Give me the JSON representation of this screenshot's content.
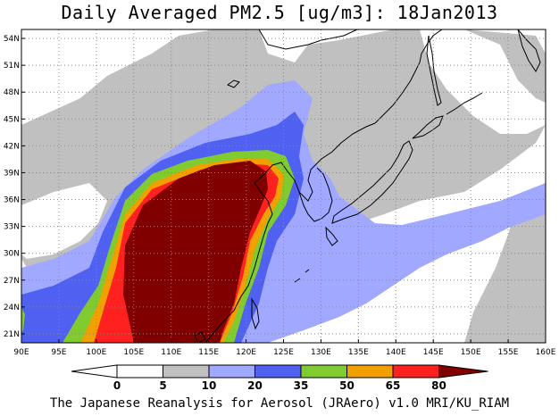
{
  "title": "Daily Averaged PM2.5 [ug/m3]: 18Jan2013",
  "footer": "The Japanese Reanalysis for Aerosol (JRAero) v1.0 MRI/KU_RIAM",
  "map": {
    "lon_ticks": [
      "90E",
      "95E",
      "100E",
      "105E",
      "110E",
      "115E",
      "120E",
      "125E",
      "130E",
      "135E",
      "140E",
      "145E",
      "150E",
      "155E",
      "160E"
    ],
    "lat_ticks": [
      "21N",
      "24N",
      "27N",
      "30N",
      "33N",
      "36N",
      "39N",
      "42N",
      "45N",
      "48N",
      "51N",
      "54N"
    ],
    "extent": {
      "lon": [
        90,
        160
      ],
      "lat": [
        20,
        55
      ]
    },
    "grid": "dotted"
  },
  "legend": {
    "labels": [
      "0",
      "5",
      "10",
      "20",
      "35",
      "50",
      "65",
      "80"
    ],
    "colors": [
      "#ffffff",
      "#ffffff",
      "#c0c0c0",
      "#a0a8ff",
      "#5060f0",
      "#80cc30",
      "#f0a000",
      "#ff2020",
      "#800000"
    ]
  }
}
